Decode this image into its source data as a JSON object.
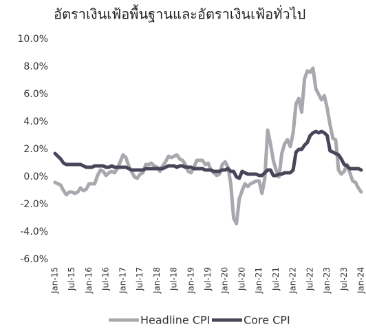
{
  "chart_data": {
    "type": "line",
    "title": "อัตราเงินเฟ้อพื้นฐานและอัตราเงินเฟ้อทั่วไป",
    "categories": [
      "Jan-15",
      null,
      null,
      null,
      null,
      null,
      "Jul-15",
      null,
      null,
      null,
      null,
      null,
      "Jan-16",
      null,
      null,
      null,
      null,
      null,
      "Jul-16",
      null,
      null,
      null,
      null,
      null,
      "Jan-17",
      null,
      null,
      null,
      null,
      null,
      "Jul-17",
      null,
      null,
      null,
      null,
      null,
      "Jan-18",
      null,
      null,
      null,
      null,
      null,
      "Jul-18",
      null,
      null,
      null,
      null,
      null,
      "Jan-19",
      null,
      null,
      null,
      null,
      null,
      "Jul-19",
      null,
      null,
      null,
      null,
      null,
      "Jan-20",
      null,
      null,
      null,
      null,
      null,
      "Jul-20",
      null,
      null,
      null,
      null,
      null,
      "Jan-21",
      null,
      null,
      null,
      null,
      null,
      "Jul-21",
      null,
      null,
      null,
      null,
      null,
      "Jan-22",
      null,
      null,
      null,
      null,
      null,
      "Jul-22",
      null,
      null,
      null,
      null,
      null,
      "Jan-23",
      null,
      null,
      null,
      null,
      null,
      "Jul-23",
      null,
      null,
      null,
      null,
      null,
      "Jan-24"
    ],
    "series": [
      {
        "name": "Headline CPI",
        "color": "#a9a8ae",
        "values": [
          -0.4,
          -0.5,
          -0.6,
          -1.0,
          -1.3,
          -1.1,
          -1.1,
          -1.2,
          -1.1,
          -0.8,
          -1.0,
          -0.9,
          -0.5,
          -0.5,
          -0.5,
          0.1,
          0.5,
          0.4,
          0.1,
          0.3,
          0.4,
          0.3,
          0.6,
          1.1,
          1.6,
          1.4,
          0.8,
          0.4,
          0.0,
          -0.1,
          0.2,
          0.3,
          0.9,
          0.9,
          1.0,
          0.8,
          0.7,
          0.4,
          0.8,
          1.1,
          1.5,
          1.4,
          1.5,
          1.6,
          1.3,
          1.2,
          0.9,
          0.4,
          0.3,
          0.7,
          1.2,
          1.2,
          1.2,
          0.9,
          1.0,
          0.5,
          0.3,
          0.1,
          0.2,
          0.9,
          1.1,
          0.7,
          -0.5,
          -3.0,
          -3.4,
          -1.6,
          -1.0,
          -0.5,
          -0.7,
          -0.5,
          -0.4,
          -0.3,
          -0.3,
          -1.2,
          -0.1,
          3.4,
          2.4,
          1.2,
          0.5,
          0.0,
          1.7,
          2.4,
          2.7,
          2.2,
          3.2,
          5.3,
          5.7,
          4.7,
          7.1,
          7.7,
          7.6,
          7.9,
          6.4,
          6.0,
          5.6,
          5.9,
          5.0,
          3.8,
          2.8,
          2.7,
          0.5,
          0.2,
          0.4,
          0.9,
          0.3,
          -0.3,
          -0.4,
          -0.8,
          -1.1
        ]
      },
      {
        "name": "Core CPI",
        "color": "#4b4559",
        "values": [
          1.7,
          1.5,
          1.3,
          1.0,
          0.9,
          0.9,
          0.9,
          0.9,
          0.9,
          0.9,
          0.8,
          0.7,
          0.7,
          0.7,
          0.8,
          0.8,
          0.8,
          0.8,
          0.7,
          0.7,
          0.8,
          0.7,
          0.7,
          0.7,
          0.7,
          0.7,
          0.6,
          0.5,
          0.5,
          0.5,
          0.5,
          0.5,
          0.6,
          0.6,
          0.6,
          0.6,
          0.6,
          0.6,
          0.6,
          0.7,
          0.8,
          0.8,
          0.8,
          0.7,
          0.8,
          0.8,
          0.7,
          0.7,
          0.7,
          0.6,
          0.6,
          0.6,
          0.6,
          0.5,
          0.5,
          0.5,
          0.4,
          0.4,
          0.4,
          0.5,
          0.5,
          0.6,
          0.4,
          0.4,
          0.0,
          -0.1,
          0.4,
          0.3,
          0.2,
          0.2,
          0.2,
          0.2,
          0.1,
          0.1,
          0.3,
          0.5,
          0.5,
          0.1,
          0.1,
          0.2,
          0.2,
          0.3,
          0.3,
          0.3,
          0.5,
          1.8,
          2.0,
          2.0,
          2.3,
          2.5,
          3.0,
          3.2,
          3.3,
          3.2,
          3.3,
          3.2,
          3.0,
          1.9,
          1.8,
          1.7,
          1.6,
          1.3,
          0.9,
          0.8,
          0.6,
          0.6,
          0.6,
          0.6,
          0.5
        ]
      }
    ],
    "ylim": [
      -6,
      10
    ],
    "yticks": [
      {
        "value": -6,
        "label": "-6.0%"
      },
      {
        "value": -4,
        "label": "-4.0%"
      },
      {
        "value": -2,
        "label": "-2.0%"
      },
      {
        "value": 0,
        "label": "0.0%"
      },
      {
        "value": 2,
        "label": "2.0%"
      },
      {
        "value": 4,
        "label": "4.0%"
      },
      {
        "value": 6,
        "label": "6.0%"
      },
      {
        "value": 8,
        "label": "8.0%"
      },
      {
        "value": 10,
        "label": "10.0%"
      }
    ],
    "grid": false,
    "legend": "bottom"
  }
}
